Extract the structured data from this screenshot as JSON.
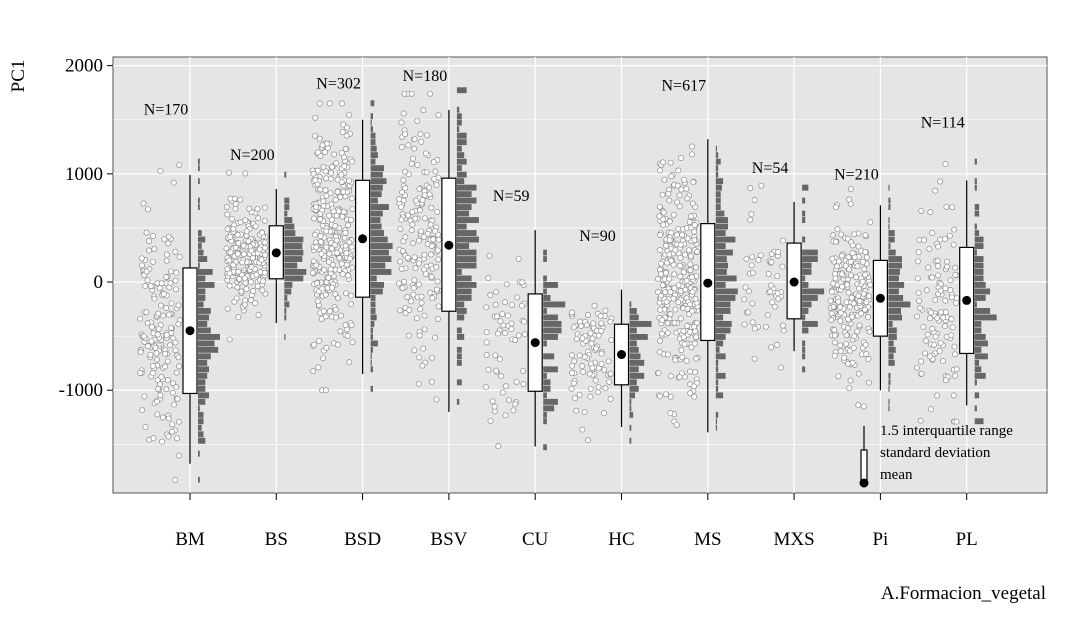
{
  "chart_data": {
    "type": "box",
    "title": "",
    "xlabel": "A.Formacion_vegetal",
    "ylabel": "PC1",
    "ylim": [
      -1950,
      2080
    ],
    "yticks": [
      -1000,
      0,
      1000,
      2000
    ],
    "yticklabels": [
      "-1000",
      "0",
      "1000",
      "2000"
    ],
    "grid": true,
    "categories": [
      "BM",
      "BS",
      "BSD",
      "BSV",
      "CU",
      "HC",
      "MS",
      "MXS",
      "Pi",
      "PL"
    ],
    "counts": [
      "N=170",
      "N=200",
      "N=302",
      "N=180",
      "N=59",
      "N=90",
      "N=617",
      "N=54",
      "N=210",
      "N=114"
    ],
    "count_label_y": [
      1550,
      1130,
      1790,
      1860,
      750,
      380,
      1770,
      1010,
      950,
      1430
    ],
    "series": [
      {
        "name": "mean",
        "values": [
          -450,
          270,
          400,
          340,
          -560,
          -670,
          -10,
          0,
          -150,
          -170
        ]
      },
      {
        "name": "sd_low",
        "values": [
          -1030,
          30,
          -140,
          -270,
          -1010,
          -950,
          -540,
          -340,
          -500,
          -660
        ]
      },
      {
        "name": "sd_high",
        "values": [
          130,
          520,
          940,
          960,
          -110,
          -390,
          540,
          360,
          200,
          320
        ]
      },
      {
        "name": "iqr15_low",
        "values": [
          -1680,
          -380,
          -850,
          -1200,
          -1520,
          -1340,
          -1390,
          -640,
          -1000,
          -1140
        ]
      },
      {
        "name": "iqr15_high",
        "values": [
          990,
          860,
          1500,
          1590,
          480,
          -70,
          1320,
          740,
          710,
          940
        ]
      }
    ],
    "legend": {
      "position": "bottom-right",
      "entries": [
        "1.5 interquartile range",
        "standard deviation",
        "mean"
      ]
    },
    "colors": {
      "panel": "#e5e5e5",
      "grid": "#ffffff",
      "bars": "#666666",
      "points_fill": "#ffffff",
      "points_stroke": "#8c8c8c",
      "box_fill": "#ffffff",
      "mean": "#000000"
    }
  }
}
